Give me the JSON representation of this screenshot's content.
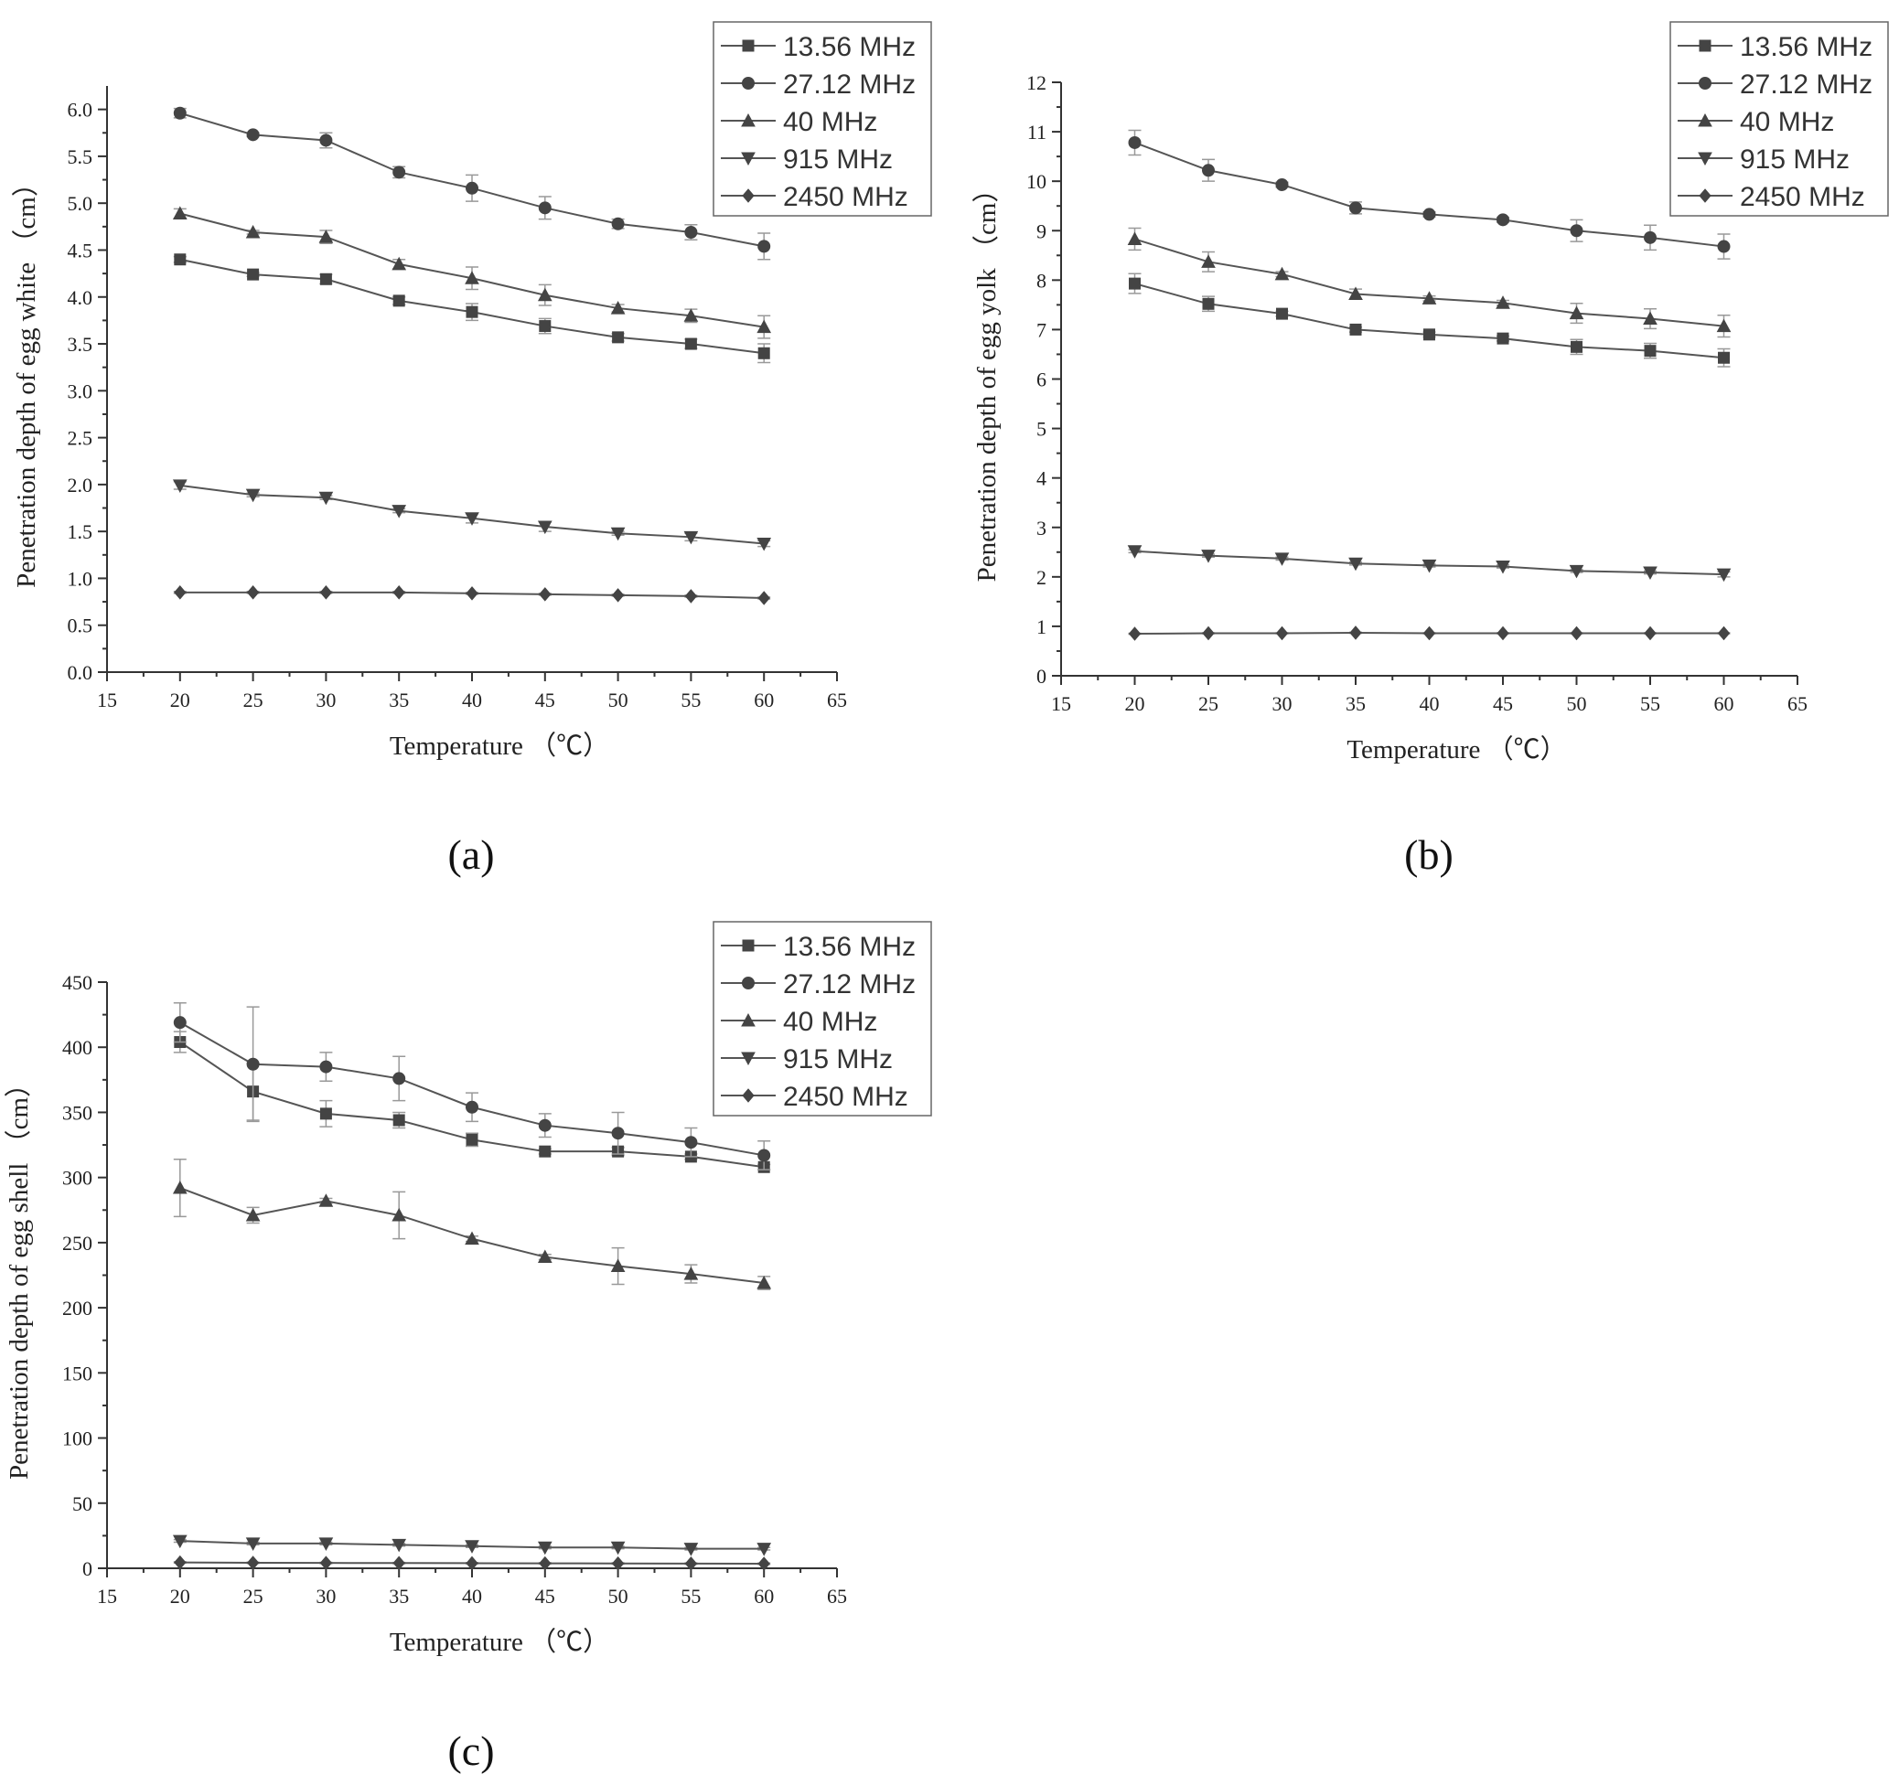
{
  "chart_data": [
    {
      "id": "a",
      "type": "line",
      "panel_label": "(a)",
      "title": "",
      "xlabel": "Temperature （℃）",
      "ylabel": "Penetration depth of egg white （cm）",
      "xlim": [
        15,
        65
      ],
      "ylim": [
        0,
        6.25
      ],
      "xticks": [
        15,
        20,
        25,
        30,
        35,
        40,
        45,
        50,
        55,
        60,
        65
      ],
      "yticks": [
        0.0,
        0.5,
        1.0,
        1.5,
        2.0,
        2.5,
        3.0,
        3.5,
        4.0,
        4.5,
        5.0,
        5.5,
        6.0
      ],
      "ytick_decimals": 1,
      "x": [
        20,
        25,
        30,
        35,
        40,
        45,
        50,
        55,
        60
      ],
      "legend_position": "top-right",
      "series": [
        {
          "name": "13.56 MHz",
          "marker": "square",
          "values": [
            4.4,
            4.24,
            4.19,
            3.96,
            3.84,
            3.69,
            3.57,
            3.5,
            3.4
          ],
          "errors": [
            0.03,
            0.02,
            0.05,
            0.04,
            0.09,
            0.08,
            0.04,
            0.05,
            0.1
          ]
        },
        {
          "name": "27.12 MHz",
          "marker": "circle",
          "values": [
            5.96,
            5.73,
            5.67,
            5.33,
            5.16,
            4.95,
            4.78,
            4.69,
            4.54
          ],
          "errors": [
            0.05,
            0.02,
            0.08,
            0.06,
            0.14,
            0.12,
            0.05,
            0.08,
            0.14
          ]
        },
        {
          "name": "40 MHz",
          "marker": "triangle-up",
          "values": [
            4.89,
            4.69,
            4.64,
            4.35,
            4.2,
            4.02,
            3.88,
            3.8,
            3.68
          ],
          "errors": [
            0.05,
            0.02,
            0.07,
            0.05,
            0.12,
            0.11,
            0.04,
            0.07,
            0.12
          ]
        },
        {
          "name": "915 MHz",
          "marker": "triangle-down",
          "values": [
            1.99,
            1.89,
            1.86,
            1.72,
            1.64,
            1.55,
            1.48,
            1.44,
            1.37
          ],
          "errors": [
            0.04,
            0.02,
            0.02,
            0.02,
            0.05,
            0.05,
            0.02,
            0.04,
            0.03
          ]
        },
        {
          "name": "2450 MHz",
          "marker": "diamond",
          "values": [
            0.85,
            0.85,
            0.85,
            0.85,
            0.84,
            0.83,
            0.82,
            0.81,
            0.79
          ],
          "errors": [
            0.01,
            0.01,
            0.01,
            0.01,
            0.01,
            0.01,
            0.01,
            0.01,
            0.01
          ]
        }
      ]
    },
    {
      "id": "b",
      "type": "line",
      "panel_label": "(b)",
      "title": "",
      "xlabel": "Temperature （℃）",
      "ylabel": "Penetration depth of egg yolk （cm）",
      "xlim": [
        15,
        65
      ],
      "ylim": [
        0,
        12
      ],
      "xticks": [
        15,
        20,
        25,
        30,
        35,
        40,
        45,
        50,
        55,
        60,
        65
      ],
      "yticks": [
        0,
        1,
        2,
        3,
        4,
        5,
        6,
        7,
        8,
        9,
        10,
        11,
        12
      ],
      "ytick_decimals": 0,
      "x": [
        20,
        25,
        30,
        35,
        40,
        45,
        50,
        55,
        60
      ],
      "legend_position": "top-right",
      "series": [
        {
          "name": "13.56 MHz",
          "marker": "square",
          "values": [
            7.93,
            7.52,
            7.32,
            7.0,
            6.9,
            6.82,
            6.65,
            6.57,
            6.43
          ],
          "errors": [
            0.2,
            0.15,
            0.05,
            0.05,
            0.05,
            0.05,
            0.15,
            0.15,
            0.18
          ]
        },
        {
          "name": "27.12 MHz",
          "marker": "circle",
          "values": [
            10.78,
            10.22,
            9.93,
            9.46,
            9.33,
            9.22,
            9.0,
            8.86,
            8.68
          ],
          "errors": [
            0.25,
            0.22,
            0.05,
            0.12,
            0.05,
            0.05,
            0.22,
            0.25,
            0.25
          ]
        },
        {
          "name": "40 MHz",
          "marker": "triangle-up",
          "values": [
            8.83,
            8.37,
            8.12,
            7.72,
            7.63,
            7.54,
            7.33,
            7.22,
            7.07
          ],
          "errors": [
            0.22,
            0.2,
            0.05,
            0.1,
            0.05,
            0.05,
            0.2,
            0.2,
            0.22
          ]
        },
        {
          "name": "915 MHz",
          "marker": "triangle-down",
          "values": [
            2.52,
            2.43,
            2.37,
            2.27,
            2.23,
            2.21,
            2.12,
            2.09,
            2.05
          ],
          "errors": [
            0.03,
            0.03,
            0.03,
            0.03,
            0.03,
            0.03,
            0.03,
            0.03,
            0.05
          ]
        },
        {
          "name": "2450 MHz",
          "marker": "diamond",
          "values": [
            0.85,
            0.86,
            0.86,
            0.87,
            0.86,
            0.86,
            0.86,
            0.86,
            0.86
          ],
          "errors": [
            0.01,
            0.01,
            0.01,
            0.01,
            0.01,
            0.01,
            0.01,
            0.01,
            0.01
          ]
        }
      ]
    },
    {
      "id": "c",
      "type": "line",
      "panel_label": "(c)",
      "title": "",
      "xlabel": "Temperature （℃）",
      "ylabel": "Penetration depth of egg shell （cm）",
      "xlim": [
        15,
        65
      ],
      "ylim": [
        0,
        450
      ],
      "xticks": [
        15,
        20,
        25,
        30,
        35,
        40,
        45,
        50,
        55,
        60,
        65
      ],
      "yticks": [
        0,
        50,
        100,
        150,
        200,
        250,
        300,
        350,
        400,
        450
      ],
      "ytick_decimals": 0,
      "x": [
        20,
        25,
        30,
        35,
        40,
        45,
        50,
        55,
        60
      ],
      "legend_position": "top-right",
      "series": [
        {
          "name": "13.56 MHz",
          "marker": "square",
          "values": [
            404,
            366,
            349,
            344,
            329,
            320,
            320,
            316,
            308
          ],
          "errors": [
            8,
            22,
            10,
            6,
            5,
            2,
            3,
            2,
            2
          ]
        },
        {
          "name": "27.12 MHz",
          "marker": "circle",
          "values": [
            419,
            387,
            385,
            376,
            354,
            340,
            334,
            327,
            317
          ],
          "errors": [
            15,
            44,
            11,
            17,
            11,
            9,
            16,
            11,
            11
          ]
        },
        {
          "name": "40 MHz",
          "marker": "triangle-up",
          "values": [
            292,
            271,
            282,
            271,
            253,
            239,
            232,
            226,
            219
          ],
          "errors": [
            22,
            6,
            2,
            18,
            2,
            2,
            14,
            7,
            5
          ]
        },
        {
          "name": "915 MHz",
          "marker": "triangle-down",
          "values": [
            21,
            19,
            19,
            18,
            17,
            16,
            16,
            15,
            15
          ],
          "errors": [
            1,
            1,
            1,
            1,
            1,
            1,
            1,
            1,
            1
          ]
        },
        {
          "name": "2450 MHz",
          "marker": "diamond",
          "values": [
            4.5,
            4.2,
            4.1,
            4.0,
            3.9,
            3.8,
            3.7,
            3.6,
            3.5
          ],
          "errors": [
            0.5,
            0.5,
            0.5,
            0.5,
            0.5,
            0.5,
            0.5,
            0.5,
            0.5
          ]
        }
      ]
    }
  ]
}
